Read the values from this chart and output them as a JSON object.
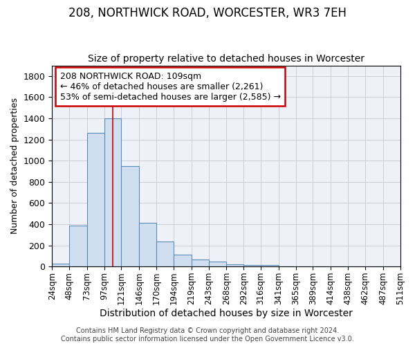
{
  "title_line1": "208, NORTHWICK ROAD, WORCESTER, WR3 7EH",
  "title_line2": "Size of property relative to detached houses in Worcester",
  "xlabel": "Distribution of detached houses by size in Worcester",
  "ylabel": "Number of detached properties",
  "bar_edges": [
    24,
    48,
    73,
    97,
    121,
    146,
    170,
    194,
    219,
    243,
    268,
    292,
    316,
    341,
    365,
    389,
    414,
    438,
    462,
    487,
    511
  ],
  "bar_heights": [
    25,
    390,
    1260,
    1400,
    950,
    415,
    235,
    115,
    65,
    45,
    20,
    15,
    15,
    3,
    3,
    0,
    0,
    0,
    0,
    0
  ],
  "bar_color": "#d0dff0",
  "bar_edge_color": "#5a8ab8",
  "red_line_x": 109,
  "ylim": [
    0,
    1900
  ],
  "yticks": [
    0,
    200,
    400,
    600,
    800,
    1000,
    1200,
    1400,
    1600,
    1800
  ],
  "annotation_text_line1": "208 NORTHWICK ROAD: 109sqm",
  "annotation_text_line2": "← 46% of detached houses are smaller (2,261)",
  "annotation_text_line3": "53% of semi-detached houses are larger (2,585) →",
  "annotation_box_color": "#ffffff",
  "annotation_box_edge": "#cc0000",
  "footer_line1": "Contains HM Land Registry data © Crown copyright and database right 2024.",
  "footer_line2": "Contains public sector information licensed under the Open Government Licence v3.0.",
  "background_color": "#eef2f8",
  "grid_color": "#c8c8d0",
  "title1_fontsize": 12,
  "title2_fontsize": 10,
  "xlabel_fontsize": 10,
  "ylabel_fontsize": 9,
  "ytick_fontsize": 9,
  "xtick_fontsize": 8.5,
  "annot_fontsize": 9,
  "footer_fontsize": 7
}
